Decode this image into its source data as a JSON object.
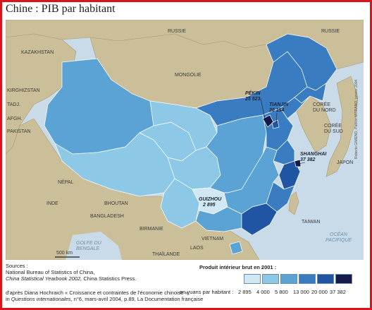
{
  "title": "Chine : PIB par habitant",
  "countries": {
    "russie_north": "RUSSIE",
    "russie_ne": "RUSSIE",
    "kazakhstan": "KAZAKHSTAN",
    "mongolie": "MONGOLIE",
    "kirghizstan": "KIRGHIZSTAN",
    "tadjikistan": "TADJ.",
    "afghanistan": "AFGH.",
    "pakistan": "PAKISTAN",
    "coree_nord": "CORÉE\nDU NORD",
    "coree_sud": "CORÉE\nDU SUD",
    "japon": "JAPON",
    "nepal": "NÉPAL",
    "inde": "INDE",
    "bhoutan": "BHOUTAN",
    "bangladesh": "BANGLADESH",
    "birmanie": "BIRMANIE",
    "laos": "LAOS",
    "vietnam": "VIETNAM",
    "thailande": "THAÏLANDE",
    "taiwan": "TAIWAN"
  },
  "seas": {
    "golfe_bengale": "GOLFE DU BENGALE",
    "ocean_pacifique": "OCÉAN PACIFIQUE"
  },
  "cities": [
    {
      "name": "PÉKIN",
      "value": "25 523"
    },
    {
      "name": "TIANJIN",
      "value": "20 154"
    },
    {
      "name": "SHANGHAI",
      "value": "37 382"
    },
    {
      "name": "GUIZHOU",
      "value": "2 895"
    }
  ],
  "scale_label": "500 km",
  "sources": {
    "heading": "Sources :",
    "line1": "National Bureau of Statistics of China,",
    "line2_italic": "China Statistical Yearbook 2002,",
    "line2_rest": " China Statistics Press."
  },
  "credit": {
    "line1": "d'après Diana Hochraich « Croissance et contraintes de l'économie chinoise »,",
    "line2_prefix": "in ",
    "line2_italic": "Questions internationales",
    "line2_rest": ", n°6, mars-avril 2004, p.89, La Documentation française"
  },
  "vertical_credit": "Roberto GIMENO, Patrice MITRANO, janvier 2004",
  "legend": {
    "title": "Produit intérieur brut en 2001 :",
    "unit_label": "en yuans par habitant :",
    "ticks": [
      "2 895",
      "4 000",
      "5 800",
      "13 000",
      "20 000",
      "37 382"
    ],
    "colors": [
      "#cfe8f4",
      "#8dc9e6",
      "#5aa3d4",
      "#3a7cc2",
      "#2055a4",
      "#141a4a"
    ]
  },
  "colors": {
    "land_other": "#cbbf9a",
    "sea": "#c9dbe8",
    "frame": "#d8141c"
  }
}
